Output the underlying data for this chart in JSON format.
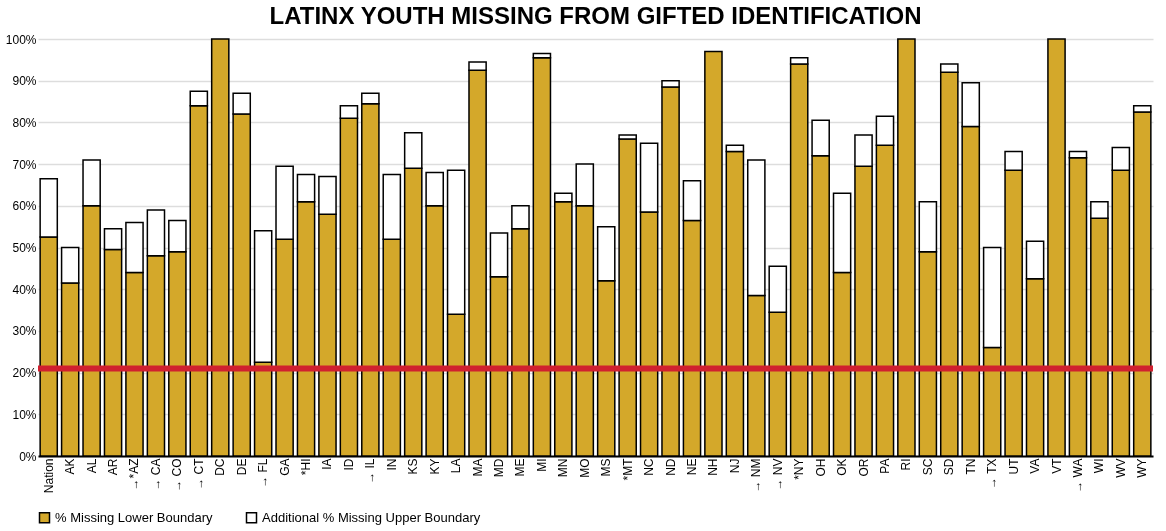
{
  "chart_data": {
    "type": "bar",
    "title": "LATINX YOUTH MISSING FROM GIFTED IDENTIFICATION",
    "stacked": true,
    "categories": [
      "Nation",
      "AK",
      "AL",
      "AR",
      "→*AZ",
      "→ CA",
      "→ CO",
      "→ CT",
      "DC",
      "DE",
      "→ FL",
      "GA",
      "*HI",
      "IA",
      "ID",
      "→ IL",
      "IN",
      "KS",
      "KY",
      "LA",
      "MA",
      "MD",
      "ME",
      "MI",
      "MN",
      "MO",
      "MS",
      "*MT",
      "NC",
      "ND",
      "NE",
      "NH",
      "NJ",
      "→ NM",
      "→ NV",
      "*NY",
      "OH",
      "OK",
      "OR",
      "PA",
      "RI",
      "SC",
      "SD",
      "TN",
      "→ TX",
      "UT",
      "VA",
      "VT",
      "→ WA",
      "WI",
      "WV",
      "WY"
    ],
    "series": [
      {
        "name": "% Missing Lower Boundary",
        "color": "#d4a82a",
        "values": [
          52.5,
          41.5,
          60,
          49.5,
          44,
          48,
          49,
          84,
          100,
          82,
          22.5,
          52,
          61,
          58,
          81,
          84.5,
          52,
          69,
          60,
          34,
          92.5,
          43,
          54.5,
          95.5,
          61,
          60,
          42,
          76,
          58.5,
          88.5,
          56.5,
          97,
          73,
          38.5,
          34.5,
          94,
          72,
          44,
          69.5,
          74.5,
          100,
          49,
          92,
          79,
          26,
          68.5,
          42.5,
          100,
          71.5,
          57,
          68.5,
          82.5
        ]
      },
      {
        "name": "Additional % Missing Upper Boundary",
        "color": "#ffffff",
        "values": [
          14,
          8.5,
          11,
          5,
          12,
          11,
          7.5,
          3.5,
          0,
          5,
          31.5,
          17.5,
          6.5,
          9,
          3,
          2.5,
          15.5,
          8.5,
          8,
          34.5,
          2,
          10.5,
          5.5,
          1,
          2,
          10,
          13,
          1,
          16.5,
          1.5,
          9.5,
          0,
          1.5,
          32.5,
          11,
          1.5,
          8.5,
          19,
          7.5,
          7,
          0,
          12,
          2,
          10.5,
          24,
          4.5,
          9,
          0,
          1.5,
          4,
          5.5,
          1.5
        ]
      }
    ],
    "ylim": [
      0,
      100
    ],
    "yticks": [
      {
        "value": 0,
        "label": "0%"
      },
      {
        "value": 10,
        "label": "10%"
      },
      {
        "value": 20,
        "label": "20%"
      },
      {
        "value": 30,
        "label": "30%"
      },
      {
        "value": 40,
        "label": "40%"
      },
      {
        "value": 50,
        "label": "50%"
      },
      {
        "value": 60,
        "label": "60%"
      },
      {
        "value": 70,
        "label": "70%"
      },
      {
        "value": 80,
        "label": "80%"
      },
      {
        "value": 90,
        "label": "90%"
      },
      {
        "value": 100,
        "label": "100%"
      }
    ],
    "ref_lines": [
      {
        "axis": "y",
        "value": 21,
        "color": "#d0202f"
      }
    ],
    "grid": "y",
    "legend": "bottom"
  }
}
